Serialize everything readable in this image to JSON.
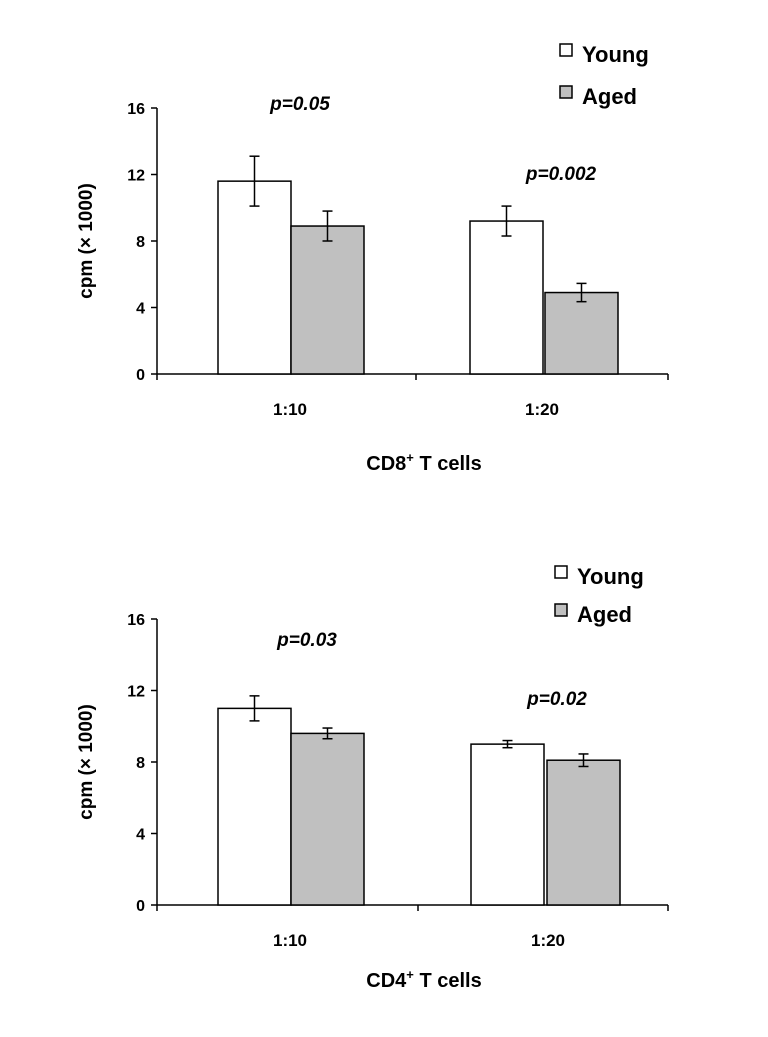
{
  "chart_data": [
    {
      "type": "bar",
      "xlabel": "CD8",
      "xlabel_sup": "+",
      "xlabel_rest": " T cells",
      "ylabel": "cpm (× 1000)",
      "ylim": [
        0,
        16
      ],
      "yticks": [
        0,
        4,
        8,
        12,
        16
      ],
      "categories": [
        "1:10",
        "1:20"
      ],
      "series": [
        {
          "name": "Young",
          "color": "#ffffff",
          "values": [
            11.6,
            9.2
          ],
          "errors": [
            1.5,
            0.9
          ]
        },
        {
          "name": "Aged",
          "color": "#c0c0c0",
          "values": [
            8.9,
            4.9
          ],
          "errors": [
            0.9,
            0.55
          ]
        }
      ],
      "annotations": [
        "p=0.05",
        "p=0.002"
      ],
      "legend": "top-right"
    },
    {
      "type": "bar",
      "xlabel": "CD4",
      "xlabel_sup": "+",
      "xlabel_rest": " T cells",
      "ylabel": "cpm (× 1000)",
      "ylim": [
        0,
        16
      ],
      "yticks": [
        0,
        4,
        8,
        12,
        16
      ],
      "categories": [
        "1:10",
        "1:20"
      ],
      "series": [
        {
          "name": "Young",
          "color": "#ffffff",
          "values": [
            11.0,
            9.0
          ],
          "errors": [
            0.7,
            0.2
          ]
        },
        {
          "name": "Aged",
          "color": "#c0c0c0",
          "values": [
            9.6,
            8.1
          ],
          "errors": [
            0.3,
            0.35
          ]
        }
      ],
      "annotations": [
        "p=0.03",
        "p=0.02"
      ],
      "legend": "top-right"
    }
  ]
}
